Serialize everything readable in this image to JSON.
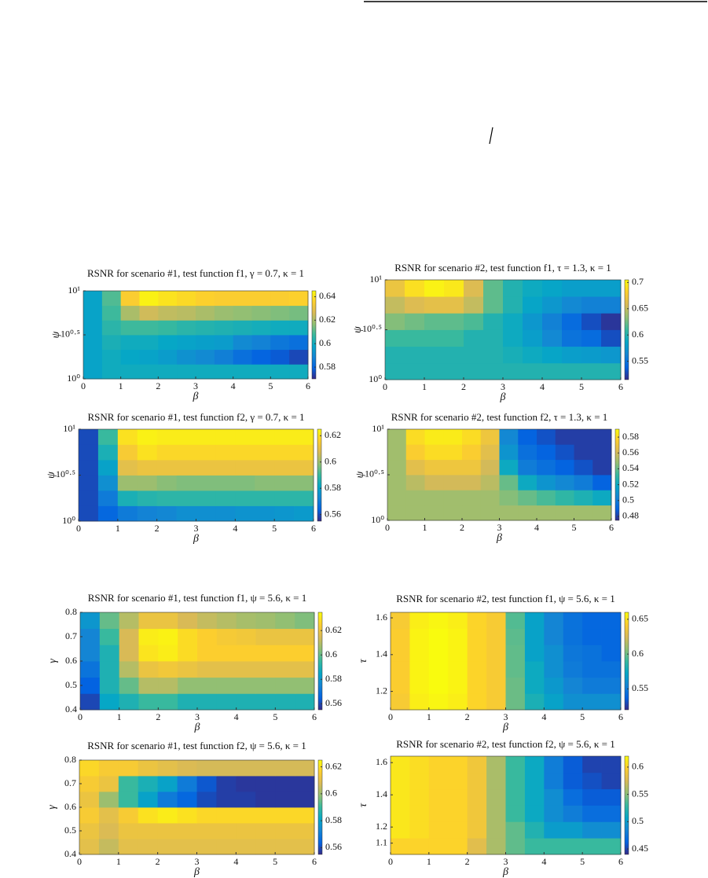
{
  "chart_data": [
    {
      "type": "heatmap",
      "title": "RSNR for scenario #1, test function f1, γ = 0.7, κ = 1",
      "x_label": "β",
      "y_label": "ψ",
      "xlim": [
        0,
        6
      ],
      "xticks": [
        0,
        1,
        2,
        3,
        4,
        5,
        6
      ],
      "ylim": [
        1,
        10
      ],
      "log_scale_y": true,
      "yticks": [
        {
          "value": 1,
          "label": "10⁰"
        },
        {
          "value": 3.1623,
          "label": "10⁰·⁵"
        },
        {
          "value": 10,
          "label": "10¹"
        }
      ],
      "colormap": "parula",
      "clim": [
        0.57,
        0.645
      ],
      "cticks": [
        0.58,
        0.6,
        0.62,
        0.64
      ],
      "z": [
        [
          0.597,
          0.6,
          0.6,
          0.6,
          0.6,
          0.6,
          0.6,
          0.6,
          0.6,
          0.6,
          0.6,
          0.6
        ],
        [
          0.597,
          0.6,
          0.598,
          0.597,
          0.595,
          0.592,
          0.59,
          0.587,
          0.583,
          0.58,
          0.578,
          0.575
        ],
        [
          0.597,
          0.602,
          0.6,
          0.6,
          0.598,
          0.597,
          0.596,
          0.595,
          0.59,
          0.588,
          0.585,
          0.583
        ],
        [
          0.597,
          0.605,
          0.608,
          0.608,
          0.607,
          0.605,
          0.604,
          0.603,
          0.602,
          0.601,
          0.6,
          0.6
        ],
        [
          0.597,
          0.608,
          0.62,
          0.625,
          0.623,
          0.622,
          0.62,
          0.618,
          0.617,
          0.616,
          0.615,
          0.614
        ],
        [
          0.597,
          0.61,
          0.635,
          0.643,
          0.64,
          0.638,
          0.636,
          0.635,
          0.635,
          0.635,
          0.635,
          0.636
        ]
      ]
    },
    {
      "type": "heatmap",
      "title": "RSNR for scenario #2, test function f1, τ = 1.3, κ = 1",
      "x_label": "β",
      "y_label": "ψ",
      "xlim": [
        0,
        6
      ],
      "xticks": [
        0,
        1,
        2,
        3,
        4,
        5,
        6
      ],
      "ylim": [
        1,
        10
      ],
      "log_scale_y": true,
      "yticks": [
        {
          "value": 1,
          "label": "10⁰"
        },
        {
          "value": 3.1623,
          "label": "10⁰·⁵"
        },
        {
          "value": 10,
          "label": "10¹"
        }
      ],
      "colormap": "parula",
      "clim": [
        0.515,
        0.705
      ],
      "cticks": [
        0.55,
        0.6,
        0.65,
        0.7
      ],
      "z": [
        [
          0.6,
          0.6,
          0.6,
          0.6,
          0.6,
          0.6,
          0.6,
          0.6,
          0.6,
          0.6,
          0.6,
          0.6
        ],
        [
          0.6,
          0.6,
          0.6,
          0.6,
          0.6,
          0.6,
          0.595,
          0.59,
          0.585,
          0.58,
          0.578,
          0.575
        ],
        [
          0.61,
          0.61,
          0.61,
          0.61,
          0.6,
          0.6,
          0.59,
          0.58,
          0.565,
          0.55,
          0.545,
          0.53
        ],
        [
          0.63,
          0.625,
          0.62,
          0.62,
          0.615,
          0.6,
          0.59,
          0.575,
          0.56,
          0.545,
          0.53,
          0.52
        ],
        [
          0.65,
          0.66,
          0.665,
          0.665,
          0.65,
          0.62,
          0.6,
          0.585,
          0.575,
          0.565,
          0.56,
          0.56
        ],
        [
          0.67,
          0.69,
          0.7,
          0.695,
          0.66,
          0.62,
          0.6,
          0.59,
          0.585,
          0.58,
          0.58,
          0.58
        ]
      ]
    },
    {
      "type": "heatmap",
      "title": "RSNR for scenario #1, test function f2, γ = 0.7, κ = 1",
      "x_label": "β",
      "y_label": "ψ",
      "xlim": [
        0,
        6
      ],
      "xticks": [
        0,
        1,
        2,
        3,
        4,
        5,
        6
      ],
      "ylim": [
        1,
        10
      ],
      "log_scale_y": true,
      "yticks": [
        {
          "value": 1,
          "label": "10⁰"
        },
        {
          "value": 3.1623,
          "label": "10⁰·⁵"
        },
        {
          "value": 10,
          "label": "10¹"
        }
      ],
      "colormap": "parula",
      "clim": [
        0.555,
        0.625
      ],
      "cticks": [
        0.56,
        0.58,
        0.6,
        0.62
      ],
      "z": [
        [
          0.56,
          0.565,
          0.57,
          0.572,
          0.573,
          0.575,
          0.575,
          0.575,
          0.576,
          0.576,
          0.577,
          0.578
        ],
        [
          0.56,
          0.57,
          0.585,
          0.587,
          0.588,
          0.588,
          0.588,
          0.588,
          0.588,
          0.588,
          0.588,
          0.588
        ],
        [
          0.56,
          0.575,
          0.6,
          0.6,
          0.598,
          0.597,
          0.597,
          0.597,
          0.597,
          0.598,
          0.598,
          0.598
        ],
        [
          0.56,
          0.58,
          0.61,
          0.612,
          0.612,
          0.612,
          0.612,
          0.612,
          0.612,
          0.612,
          0.612,
          0.612
        ],
        [
          0.56,
          0.585,
          0.615,
          0.62,
          0.618,
          0.618,
          0.618,
          0.618,
          0.618,
          0.618,
          0.618,
          0.618
        ],
        [
          0.56,
          0.59,
          0.62,
          0.623,
          0.622,
          0.622,
          0.622,
          0.622,
          0.622,
          0.622,
          0.622,
          0.622
        ]
      ]
    },
    {
      "type": "heatmap",
      "title": "RSNR for scenario #2, test function f2, τ = 1.3, κ = 1",
      "x_label": "β",
      "y_label": "ψ",
      "xlim": [
        0,
        6
      ],
      "xticks": [
        0,
        1,
        2,
        3,
        4,
        5,
        6
      ],
      "ylim": [
        1,
        10
      ],
      "log_scale_y": true,
      "yticks": [
        {
          "value": 1,
          "label": "10⁰"
        },
        {
          "value": 3.1623,
          "label": "10⁰·⁵"
        },
        {
          "value": 10,
          "label": "10¹"
        }
      ],
      "colormap": "parula",
      "clim": [
        0.475,
        0.59
      ],
      "cticks": [
        0.48,
        0.5,
        0.52,
        0.54,
        0.56,
        0.58
      ],
      "z": [
        [
          0.55,
          0.55,
          0.55,
          0.55,
          0.55,
          0.55,
          0.55,
          0.55,
          0.55,
          0.55,
          0.55,
          0.55
        ],
        [
          0.55,
          0.55,
          0.55,
          0.55,
          0.55,
          0.55,
          0.545,
          0.54,
          0.535,
          0.53,
          0.525,
          0.52
        ],
        [
          0.55,
          0.555,
          0.56,
          0.56,
          0.56,
          0.555,
          0.54,
          0.52,
          0.51,
          0.505,
          0.5,
          0.49
        ],
        [
          0.55,
          0.565,
          0.57,
          0.57,
          0.57,
          0.56,
          0.52,
          0.5,
          0.495,
          0.49,
          0.485,
          0.48
        ],
        [
          0.55,
          0.575,
          0.58,
          0.58,
          0.575,
          0.565,
          0.51,
          0.495,
          0.49,
          0.485,
          0.48,
          0.48
        ],
        [
          0.55,
          0.58,
          0.585,
          0.585,
          0.58,
          0.57,
          0.505,
          0.49,
          0.485,
          0.48,
          0.48,
          0.48
        ]
      ]
    },
    {
      "type": "heatmap",
      "title": "RSNR for scenario #1, test function f1, ψ = 5.6, κ = 1",
      "x_label": "β",
      "y_label": "γ",
      "xlim": [
        0,
        6
      ],
      "xticks": [
        0,
        1,
        2,
        3,
        4,
        5,
        6
      ],
      "ylim": [
        0.4,
        0.8
      ],
      "yticks": [
        0.4,
        0.5,
        0.6,
        0.7,
        0.8
      ],
      "colormap": "parula",
      "clim": [
        0.555,
        0.635
      ],
      "cticks": [
        0.56,
        0.58,
        0.6,
        0.62
      ],
      "z": [
        [
          0.56,
          0.585,
          0.59,
          0.595,
          0.595,
          0.59,
          0.59,
          0.59,
          0.59,
          0.59,
          0.59,
          0.59
        ],
        [
          0.565,
          0.59,
          0.6,
          0.61,
          0.61,
          0.605,
          0.605,
          0.605,
          0.605,
          0.605,
          0.605,
          0.605
        ],
        [
          0.57,
          0.59,
          0.61,
          0.62,
          0.622,
          0.62,
          0.618,
          0.618,
          0.618,
          0.618,
          0.618,
          0.618
        ],
        [
          0.575,
          0.59,
          0.615,
          0.63,
          0.632,
          0.628,
          0.625,
          0.625,
          0.625,
          0.625,
          0.625,
          0.625
        ],
        [
          0.575,
          0.595,
          0.615,
          0.632,
          0.633,
          0.628,
          0.625,
          0.623,
          0.622,
          0.62,
          0.62,
          0.62
        ],
        [
          0.58,
          0.6,
          0.61,
          0.62,
          0.62,
          0.615,
          0.612,
          0.61,
          0.608,
          0.607,
          0.605,
          0.603
        ]
      ]
    },
    {
      "type": "heatmap",
      "title": "RSNR for scenario #2, test function f1, ψ = 5.6, κ = 1",
      "x_label": "β",
      "y_label": "τ",
      "xlim": [
        0,
        6
      ],
      "xticks": [
        0,
        1,
        2,
        3,
        4,
        5,
        6
      ],
      "ylim": [
        1.1,
        1.63
      ],
      "yticks": [
        1.2,
        1.4,
        1.6
      ],
      "colormap": "parula",
      "clim": [
        0.52,
        0.66
      ],
      "cticks": [
        0.55,
        0.6,
        0.65
      ],
      "z": [
        [
          0.64,
          0.655,
          0.658,
          0.655,
          0.645,
          0.64,
          0.6,
          0.58,
          0.57,
          0.56,
          0.56,
          0.56
        ],
        [
          0.642,
          0.657,
          0.66,
          0.657,
          0.645,
          0.64,
          0.6,
          0.575,
          0.565,
          0.555,
          0.55,
          0.55
        ],
        [
          0.642,
          0.657,
          0.66,
          0.657,
          0.645,
          0.64,
          0.598,
          0.575,
          0.56,
          0.55,
          0.545,
          0.545
        ],
        [
          0.642,
          0.657,
          0.66,
          0.657,
          0.645,
          0.64,
          0.598,
          0.57,
          0.56,
          0.548,
          0.545,
          0.54
        ],
        [
          0.642,
          0.657,
          0.66,
          0.657,
          0.645,
          0.64,
          0.597,
          0.57,
          0.555,
          0.545,
          0.54,
          0.54
        ],
        [
          0.64,
          0.655,
          0.658,
          0.655,
          0.645,
          0.64,
          0.595,
          0.57,
          0.555,
          0.545,
          0.54,
          0.54
        ]
      ]
    },
    {
      "type": "heatmap",
      "title": "RSNR for scenario #1, test function f2, ψ = 5.6, κ = 1",
      "x_label": "β",
      "y_label": "γ",
      "xlim": [
        0,
        6
      ],
      "xticks": [
        0,
        1,
        2,
        3,
        4,
        5,
        6
      ],
      "ylim": [
        0.4,
        0.8
      ],
      "yticks": [
        0.4,
        0.5,
        0.6,
        0.7,
        0.8
      ],
      "colormap": "parula",
      "clim": [
        0.555,
        0.625
      ],
      "cticks": [
        0.56,
        0.58,
        0.6,
        0.62
      ],
      "z": [
        [
          0.61,
          0.605,
          0.61,
          0.61,
          0.61,
          0.61,
          0.61,
          0.61,
          0.61,
          0.61,
          0.61,
          0.61
        ],
        [
          0.612,
          0.608,
          0.612,
          0.612,
          0.612,
          0.612,
          0.612,
          0.612,
          0.612,
          0.612,
          0.612,
          0.612
        ],
        [
          0.615,
          0.61,
          0.615,
          0.62,
          0.622,
          0.62,
          0.618,
          0.618,
          0.618,
          0.618,
          0.618,
          0.618
        ],
        [
          0.612,
          0.6,
          0.59,
          0.58,
          0.57,
          0.565,
          0.56,
          0.558,
          0.558,
          0.557,
          0.557,
          0.557
        ],
        [
          0.615,
          0.612,
          0.59,
          0.585,
          0.58,
          0.57,
          0.562,
          0.558,
          0.557,
          0.557,
          0.557,
          0.557
        ],
        [
          0.618,
          0.615,
          0.615,
          0.612,
          0.61,
          0.608,
          0.607,
          0.607,
          0.607,
          0.607,
          0.607,
          0.607
        ]
      ]
    },
    {
      "type": "heatmap",
      "title": "RSNR for scenario #2, test function f2, ψ = 5.6, κ = 1",
      "x_label": "β",
      "y_label": "τ",
      "xlim": [
        0,
        6
      ],
      "xticks": [
        0,
        1,
        2,
        3,
        4,
        5,
        6
      ],
      "ylim": [
        1.03,
        1.64
      ],
      "yticks": [
        1.1,
        1.2,
        1.4,
        1.6
      ],
      "colormap": "parula",
      "clim": [
        0.44,
        0.62
      ],
      "cticks": [
        0.45,
        0.5,
        0.55,
        0.6
      ],
      "z": [
        [
          0.6,
          0.6,
          0.6,
          0.6,
          0.58,
          0.56,
          0.54,
          0.53,
          0.53,
          0.53,
          0.53,
          0.53
        ],
        [
          0.61,
          0.605,
          0.6,
          0.6,
          0.59,
          0.56,
          0.54,
          0.52,
          0.5,
          0.5,
          0.49,
          0.49
        ],
        [
          0.61,
          0.605,
          0.6,
          0.6,
          0.59,
          0.56,
          0.53,
          0.51,
          0.49,
          0.48,
          0.47,
          0.47
        ],
        [
          0.61,
          0.605,
          0.6,
          0.6,
          0.59,
          0.56,
          0.53,
          0.51,
          0.49,
          0.47,
          0.46,
          0.46
        ],
        [
          0.61,
          0.605,
          0.6,
          0.6,
          0.59,
          0.56,
          0.53,
          0.51,
          0.48,
          0.46,
          0.455,
          0.45
        ],
        [
          0.61,
          0.605,
          0.6,
          0.6,
          0.59,
          0.56,
          0.53,
          0.51,
          0.48,
          0.46,
          0.45,
          0.45
        ]
      ]
    }
  ]
}
